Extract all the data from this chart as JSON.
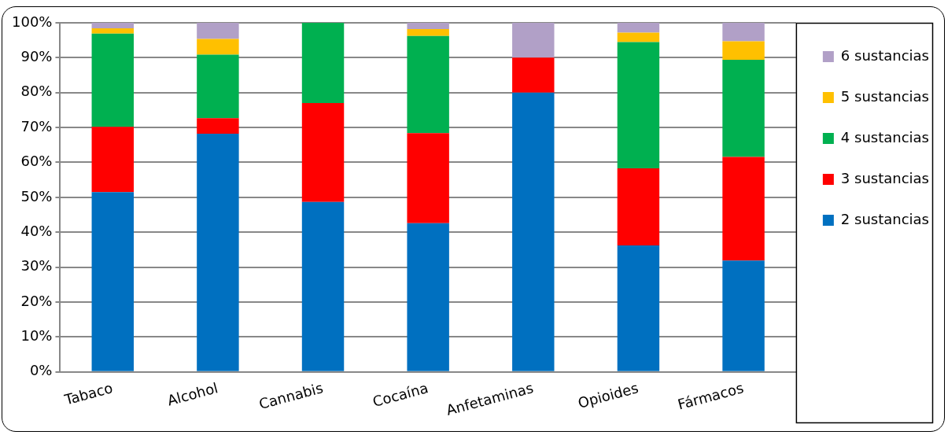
{
  "chart_data": {
    "type": "bar",
    "stacked": true,
    "categories": [
      "Tabaco",
      "Alcohol",
      "Cannabis",
      "Cocaína",
      "Anfetaminas",
      "Opioides",
      "Fármacos"
    ],
    "series": [
      {
        "name": "2 sustancias",
        "color": "#0070c0",
        "values": [
          51.5,
          68.2,
          48.7,
          42.6,
          80,
          36.2,
          31.9
        ]
      },
      {
        "name": "3 sustancias",
        "color": "#ff0000",
        "values": [
          18.7,
          4.5,
          28.3,
          25.8,
          10,
          22.1,
          29.7
        ]
      },
      {
        "name": "4 sustancias",
        "color": "#00b050",
        "values": [
          26.7,
          18.2,
          23,
          27.8,
          0,
          36.2,
          27.8
        ]
      },
      {
        "name": "5 sustancias",
        "color": "#ffc000",
        "values": [
          1.5,
          4.5,
          0,
          2,
          0,
          2.7,
          5.3
        ]
      },
      {
        "name": "6 sustancias",
        "color": "#b1a0c7",
        "values": [
          1.6,
          4.6,
          0,
          1.8,
          10,
          2.8,
          5.3
        ]
      }
    ],
    "ylim": [
      0,
      100
    ],
    "yticks": [
      {
        "value": 0,
        "label": "0%"
      },
      {
        "value": 10,
        "label": "10%"
      },
      {
        "value": 20,
        "label": "20%"
      },
      {
        "value": 30,
        "label": "30%"
      },
      {
        "value": 40,
        "label": "40%"
      },
      {
        "value": 50,
        "label": "50%"
      },
      {
        "value": 60,
        "label": "60%"
      },
      {
        "value": 70,
        "label": "70%"
      },
      {
        "value": 80,
        "label": "80%"
      },
      {
        "value": 90,
        "label": "90%"
      },
      {
        "value": 100,
        "label": "100%"
      }
    ],
    "grid": "y",
    "legend": "right"
  }
}
